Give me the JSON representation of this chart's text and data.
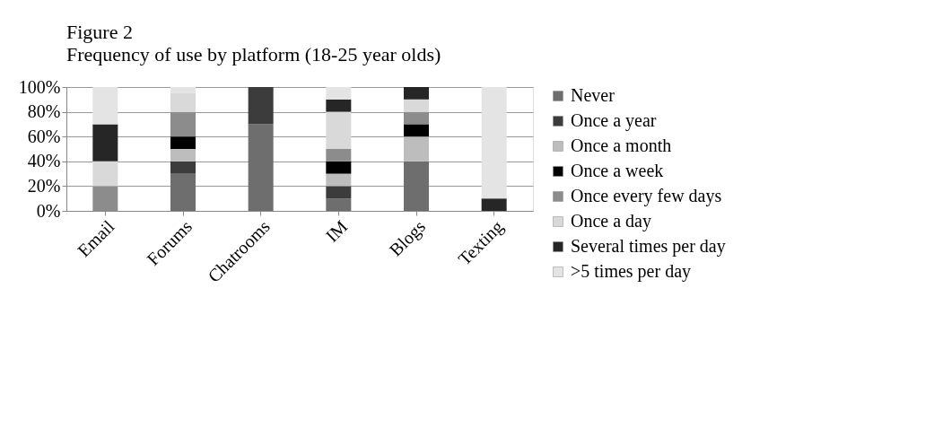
{
  "chart_data": {
    "type": "bar",
    "stacked": true,
    "title": "Figure 2",
    "subtitle": "Frequency of use by platform (18-25 year olds)",
    "categories": [
      "Email",
      "Forums",
      "Chatrooms",
      "IM",
      "Blogs",
      "Texting"
    ],
    "series": [
      {
        "name": "Never",
        "color": "#6e6e6e",
        "values": [
          0,
          30,
          70,
          10,
          40,
          0
        ]
      },
      {
        "name": "Once a year",
        "color": "#3c3c3c",
        "values": [
          0,
          10,
          30,
          10,
          0,
          0
        ]
      },
      {
        "name": "Once a month",
        "color": "#bdbdbd",
        "values": [
          0,
          10,
          0,
          10,
          20,
          0
        ]
      },
      {
        "name": "Once a week",
        "color": "#000000",
        "values": [
          0,
          10,
          0,
          10,
          10,
          0
        ]
      },
      {
        "name": "Once every few days",
        "color": "#8c8c8c",
        "values": [
          20,
          20,
          0,
          10,
          10,
          0
        ]
      },
      {
        "name": "Once a day",
        "color": "#d9d9d9",
        "values": [
          20,
          15,
          0,
          30,
          10,
          0
        ]
      },
      {
        "name": "Several times per day",
        "color": "#262626",
        "values": [
          30,
          0,
          0,
          10,
          10,
          10
        ]
      },
      {
        "name": ">5 times per day",
        "color": "#e4e4e4",
        "values": [
          30,
          5,
          0,
          10,
          0,
          90
        ]
      }
    ],
    "ylim": [
      0,
      100
    ],
    "yticks": [
      {
        "value": 0,
        "label": "0%"
      },
      {
        "value": 20,
        "label": "20%"
      },
      {
        "value": 40,
        "label": "40%"
      },
      {
        "value": 60,
        "label": "60%"
      },
      {
        "value": 80,
        "label": "80%"
      },
      {
        "value": 100,
        "label": "100%"
      }
    ],
    "grid": "y",
    "legend": "right"
  }
}
